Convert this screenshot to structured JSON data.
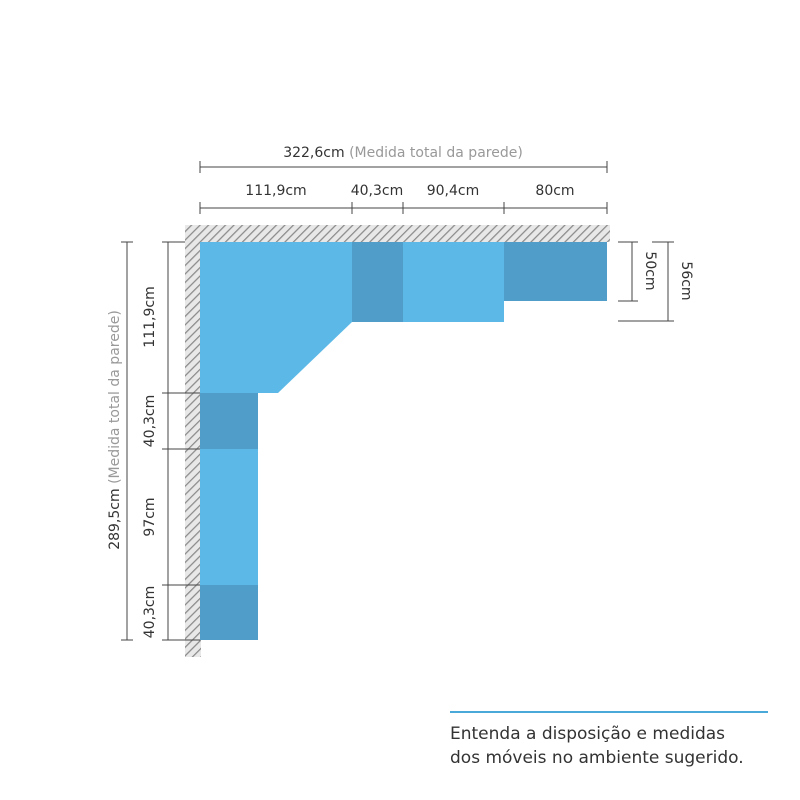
{
  "top": {
    "total": "322,6cm",
    "total_note": "(Medida total da parede)",
    "segments": [
      "111,9cm",
      "40,3cm",
      "90,4cm",
      "80cm"
    ]
  },
  "right": {
    "depths": [
      "50cm",
      "56cm"
    ]
  },
  "left": {
    "total": "289,5cm",
    "total_note": "(Medida total da parede)",
    "segments": [
      "111,9cm",
      "40,3cm",
      "97cm",
      "40,3cm"
    ]
  },
  "caption": {
    "lines": [
      "Entenda a disposição e medidas",
      "dos móveis no ambiente sugerido."
    ]
  }
}
